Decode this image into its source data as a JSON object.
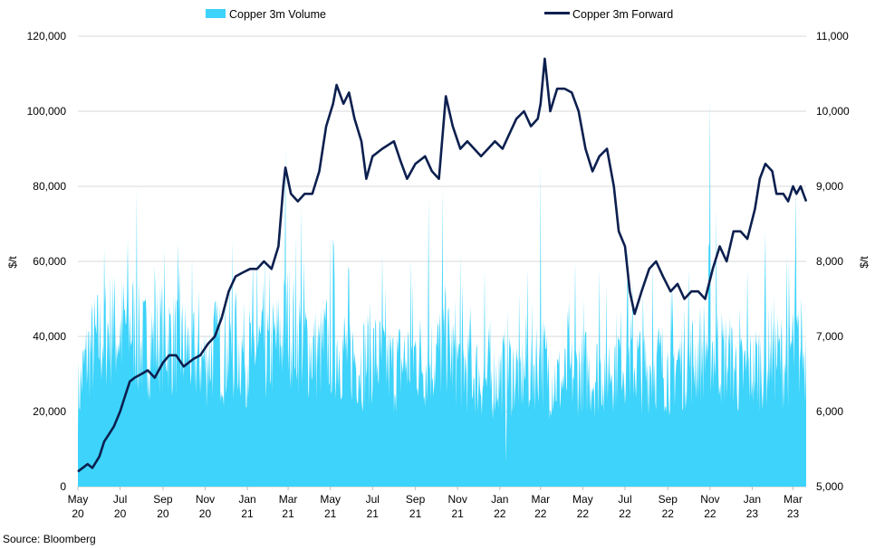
{
  "chart_data": {
    "type": "bar+line",
    "legend": {
      "position": "top",
      "entries": [
        {
          "name": "Copper 3m Volume",
          "color": "#3dd3fa"
        },
        {
          "name": "Copper 3m Forward",
          "color": "#0c1f4f"
        }
      ]
    },
    "left_axis": {
      "label": "$/t",
      "ylim": [
        0,
        120000
      ],
      "ticks": [
        "0",
        "20,000",
        "40,000",
        "60,000",
        "80,000",
        "100,000",
        "120,000"
      ],
      "tick_values": [
        0,
        20000,
        40000,
        60000,
        80000,
        100000,
        120000
      ]
    },
    "right_axis": {
      "label": "$/t",
      "ylim": [
        5000,
        11000
      ],
      "ticks": [
        "5,000",
        "6,000",
        "7,000",
        "8,000",
        "9,000",
        "10,000",
        "11,000"
      ],
      "tick_values": [
        5000,
        6000,
        7000,
        8000,
        9000,
        10000,
        11000
      ]
    },
    "x_axis": {
      "start": "2020-05-01",
      "end": "2023-03-20",
      "ticks": [
        {
          "date": "2020-05-01",
          "line1": "May",
          "line2": "20"
        },
        {
          "date": "2020-07-01",
          "line1": "Jul",
          "line2": "20"
        },
        {
          "date": "2020-09-01",
          "line1": "Sep",
          "line2": "20"
        },
        {
          "date": "2020-11-01",
          "line1": "Nov",
          "line2": "20"
        },
        {
          "date": "2021-01-01",
          "line1": "Jan",
          "line2": "21"
        },
        {
          "date": "2021-03-01",
          "line1": "Mar",
          "line2": "21"
        },
        {
          "date": "2021-05-01",
          "line1": "May",
          "line2": "21"
        },
        {
          "date": "2021-07-01",
          "line1": "Jul",
          "line2": "21"
        },
        {
          "date": "2021-09-01",
          "line1": "Sep",
          "line2": "21"
        },
        {
          "date": "2021-11-01",
          "line1": "Nov",
          "line2": "21"
        },
        {
          "date": "2022-01-01",
          "line1": "Jan",
          "line2": "22"
        },
        {
          "date": "2022-03-01",
          "line1": "Mar",
          "line2": "22"
        },
        {
          "date": "2022-05-01",
          "line1": "May",
          "line2": "22"
        },
        {
          "date": "2022-07-01",
          "line1": "Jul",
          "line2": "22"
        },
        {
          "date": "2022-09-01",
          "line1": "Sep",
          "line2": "22"
        },
        {
          "date": "2022-11-01",
          "line1": "Nov",
          "line2": "22"
        },
        {
          "date": "2023-01-01",
          "line1": "Jan",
          "line2": "23"
        },
        {
          "date": "2023-03-01",
          "line1": "Mar",
          "line2": "23"
        }
      ]
    },
    "grid": "horizontal",
    "series": [
      {
        "name": "Copper 3m Volume",
        "type": "area",
        "axis": "left",
        "color": "#3dd3fa",
        "points": [
          [
            "2020-05-01",
            26000
          ],
          [
            "2020-05-15",
            38000
          ],
          [
            "2020-06-01",
            42000
          ],
          [
            "2020-06-15",
            46000
          ],
          [
            "2020-07-01",
            44000
          ],
          [
            "2020-07-15",
            48000
          ],
          [
            "2020-08-01",
            40000
          ],
          [
            "2020-08-15",
            42000
          ],
          [
            "2020-09-01",
            44000
          ],
          [
            "2020-09-15",
            42000
          ],
          [
            "2020-10-01",
            40000
          ],
          [
            "2020-10-15",
            38000
          ],
          [
            "2020-11-01",
            36000
          ],
          [
            "2020-11-15",
            40000
          ],
          [
            "2020-12-01",
            38000
          ],
          [
            "2020-12-15",
            40000
          ],
          [
            "2021-01-01",
            38000
          ],
          [
            "2021-01-15",
            40000
          ],
          [
            "2021-02-01",
            38000
          ],
          [
            "2021-02-15",
            42000
          ],
          [
            "2021-03-01",
            48000
          ],
          [
            "2021-03-15",
            44000
          ],
          [
            "2021-04-01",
            40000
          ],
          [
            "2021-04-15",
            38000
          ],
          [
            "2021-05-01",
            42000
          ],
          [
            "2021-05-15",
            40000
          ],
          [
            "2021-06-01",
            38000
          ],
          [
            "2021-06-15",
            36000
          ],
          [
            "2021-07-01",
            38000
          ],
          [
            "2021-07-15",
            36000
          ],
          [
            "2021-08-01",
            34000
          ],
          [
            "2021-08-15",
            36000
          ],
          [
            "2021-09-01",
            38000
          ],
          [
            "2021-09-15",
            36000
          ],
          [
            "2021-10-01",
            38000
          ],
          [
            "2021-10-15",
            40000
          ],
          [
            "2021-11-01",
            36000
          ],
          [
            "2021-11-15",
            34000
          ],
          [
            "2021-12-01",
            32000
          ],
          [
            "2021-12-15",
            30000
          ],
          [
            "2022-01-01",
            32000
          ],
          [
            "2022-01-15",
            34000
          ],
          [
            "2022-02-01",
            32000
          ],
          [
            "2022-02-15",
            34000
          ],
          [
            "2022-03-01",
            38000
          ],
          [
            "2022-03-15",
            32000
          ],
          [
            "2022-04-01",
            30000
          ],
          [
            "2022-04-15",
            32000
          ],
          [
            "2022-05-01",
            34000
          ],
          [
            "2022-05-15",
            32000
          ],
          [
            "2022-06-01",
            34000
          ],
          [
            "2022-06-15",
            36000
          ],
          [
            "2022-07-01",
            38000
          ],
          [
            "2022-07-15",
            36000
          ],
          [
            "2022-08-01",
            34000
          ],
          [
            "2022-08-15",
            36000
          ],
          [
            "2022-09-01",
            34000
          ],
          [
            "2022-09-15",
            36000
          ],
          [
            "2022-10-01",
            36000
          ],
          [
            "2022-10-15",
            38000
          ],
          [
            "2022-11-01",
            42000
          ],
          [
            "2022-11-15",
            38000
          ],
          [
            "2022-12-01",
            36000
          ],
          [
            "2022-12-15",
            32000
          ],
          [
            "2023-01-01",
            34000
          ],
          [
            "2023-01-15",
            36000
          ],
          [
            "2023-02-01",
            38000
          ],
          [
            "2023-02-15",
            36000
          ],
          [
            "2023-03-01",
            40000
          ],
          [
            "2023-03-20",
            38000
          ]
        ],
        "spikes": [
          [
            "2020-06-20",
            56000
          ],
          [
            "2020-07-25",
            79000
          ],
          [
            "2020-08-20",
            59000
          ],
          [
            "2020-09-25",
            59000
          ],
          [
            "2020-12-10",
            66000
          ],
          [
            "2021-01-15",
            62000
          ],
          [
            "2021-02-25",
            91000
          ],
          [
            "2021-03-20",
            75000
          ],
          [
            "2021-05-05",
            66000
          ],
          [
            "2021-07-15",
            62000
          ],
          [
            "2021-08-25",
            61000
          ],
          [
            "2021-09-20",
            77000
          ],
          [
            "2021-10-10",
            79000
          ],
          [
            "2021-11-05",
            62000
          ],
          [
            "2021-12-10",
            58000
          ],
          [
            "2022-02-10",
            58000
          ],
          [
            "2022-03-01",
            86000
          ],
          [
            "2022-04-20",
            60000
          ],
          [
            "2022-05-25",
            58000
          ],
          [
            "2022-07-05",
            64000
          ],
          [
            "2022-08-10",
            60000
          ],
          [
            "2022-10-01",
            58000
          ],
          [
            "2022-11-01",
            104000
          ],
          [
            "2022-11-10",
            74000
          ],
          [
            "2022-12-25",
            58000
          ],
          [
            "2023-01-20",
            68000
          ],
          [
            "2023-02-20",
            62000
          ],
          [
            "2023-03-05",
            79000
          ]
        ],
        "dips": [
          [
            "2022-01-10",
            6000
          ]
        ]
      },
      {
        "name": "Copper 3m Forward",
        "type": "line",
        "axis": "right",
        "color": "#0c1f4f",
        "points": [
          [
            "2020-05-01",
            5200
          ],
          [
            "2020-05-08",
            5250
          ],
          [
            "2020-05-15",
            5300
          ],
          [
            "2020-05-22",
            5250
          ],
          [
            "2020-06-01",
            5400
          ],
          [
            "2020-06-08",
            5600
          ],
          [
            "2020-06-15",
            5700
          ],
          [
            "2020-06-22",
            5800
          ],
          [
            "2020-07-01",
            6000
          ],
          [
            "2020-07-08",
            6200
          ],
          [
            "2020-07-15",
            6400
          ],
          [
            "2020-07-22",
            6450
          ],
          [
            "2020-08-01",
            6500
          ],
          [
            "2020-08-10",
            6550
          ],
          [
            "2020-08-20",
            6450
          ],
          [
            "2020-09-01",
            6650
          ],
          [
            "2020-09-10",
            6750
          ],
          [
            "2020-09-20",
            6750
          ],
          [
            "2020-10-01",
            6600
          ],
          [
            "2020-10-15",
            6700
          ],
          [
            "2020-10-25",
            6750
          ],
          [
            "2020-11-05",
            6900
          ],
          [
            "2020-11-15",
            7000
          ],
          [
            "2020-11-25",
            7250
          ],
          [
            "2020-12-05",
            7600
          ],
          [
            "2020-12-15",
            7800
          ],
          [
            "2020-12-25",
            7850
          ],
          [
            "2021-01-05",
            7900
          ],
          [
            "2021-01-15",
            7900
          ],
          [
            "2021-01-25",
            8000
          ],
          [
            "2021-02-05",
            7900
          ],
          [
            "2021-02-15",
            8200
          ],
          [
            "2021-02-22",
            9000
          ],
          [
            "2021-02-25",
            9250
          ],
          [
            "2021-03-05",
            8900
          ],
          [
            "2021-03-15",
            8800
          ],
          [
            "2021-03-25",
            8900
          ],
          [
            "2021-04-05",
            8900
          ],
          [
            "2021-04-15",
            9200
          ],
          [
            "2021-04-25",
            9800
          ],
          [
            "2021-05-05",
            10100
          ],
          [
            "2021-05-10",
            10350
          ],
          [
            "2021-05-20",
            10100
          ],
          [
            "2021-05-28",
            10250
          ],
          [
            "2021-06-05",
            9900
          ],
          [
            "2021-06-15",
            9600
          ],
          [
            "2021-06-22",
            9100
          ],
          [
            "2021-07-01",
            9400
          ],
          [
            "2021-07-15",
            9500
          ],
          [
            "2021-08-01",
            9600
          ],
          [
            "2021-08-10",
            9350
          ],
          [
            "2021-08-20",
            9100
          ],
          [
            "2021-09-01",
            9300
          ],
          [
            "2021-09-15",
            9400
          ],
          [
            "2021-09-25",
            9200
          ],
          [
            "2021-10-05",
            9100
          ],
          [
            "2021-10-15",
            10200
          ],
          [
            "2021-10-25",
            9800
          ],
          [
            "2021-11-05",
            9500
          ],
          [
            "2021-11-15",
            9600
          ],
          [
            "2021-11-25",
            9500
          ],
          [
            "2021-12-05",
            9400
          ],
          [
            "2021-12-15",
            9500
          ],
          [
            "2021-12-25",
            9600
          ],
          [
            "2022-01-05",
            9500
          ],
          [
            "2022-01-15",
            9700
          ],
          [
            "2022-01-25",
            9900
          ],
          [
            "2022-02-05",
            10000
          ],
          [
            "2022-02-15",
            9800
          ],
          [
            "2022-02-25",
            9900
          ],
          [
            "2022-03-01",
            10100
          ],
          [
            "2022-03-07",
            10700
          ],
          [
            "2022-03-15",
            10000
          ],
          [
            "2022-03-25",
            10300
          ],
          [
            "2022-04-05",
            10300
          ],
          [
            "2022-04-15",
            10250
          ],
          [
            "2022-04-25",
            10000
          ],
          [
            "2022-05-05",
            9500
          ],
          [
            "2022-05-15",
            9200
          ],
          [
            "2022-05-25",
            9400
          ],
          [
            "2022-06-05",
            9500
          ],
          [
            "2022-06-15",
            9000
          ],
          [
            "2022-06-22",
            8400
          ],
          [
            "2022-07-01",
            8200
          ],
          [
            "2022-07-08",
            7600
          ],
          [
            "2022-07-15",
            7300
          ],
          [
            "2022-07-25",
            7600
          ],
          [
            "2022-08-05",
            7900
          ],
          [
            "2022-08-15",
            8000
          ],
          [
            "2022-08-25",
            7800
          ],
          [
            "2022-09-05",
            7600
          ],
          [
            "2022-09-15",
            7700
          ],
          [
            "2022-09-25",
            7500
          ],
          [
            "2022-10-05",
            7600
          ],
          [
            "2022-10-15",
            7600
          ],
          [
            "2022-10-25",
            7500
          ],
          [
            "2022-11-05",
            7900
          ],
          [
            "2022-11-15",
            8200
          ],
          [
            "2022-11-25",
            8000
          ],
          [
            "2022-12-05",
            8400
          ],
          [
            "2022-12-15",
            8400
          ],
          [
            "2022-12-25",
            8300
          ],
          [
            "2023-01-05",
            8700
          ],
          [
            "2023-01-12",
            9100
          ],
          [
            "2023-01-20",
            9300
          ],
          [
            "2023-01-30",
            9200
          ],
          [
            "2023-02-05",
            8900
          ],
          [
            "2023-02-15",
            8900
          ],
          [
            "2023-02-22",
            8800
          ],
          [
            "2023-03-01",
            9000
          ],
          [
            "2023-03-06",
            8900
          ],
          [
            "2023-03-12",
            9000
          ],
          [
            "2023-03-20",
            8800
          ]
        ]
      }
    ],
    "source": "Source: Bloomberg"
  }
}
